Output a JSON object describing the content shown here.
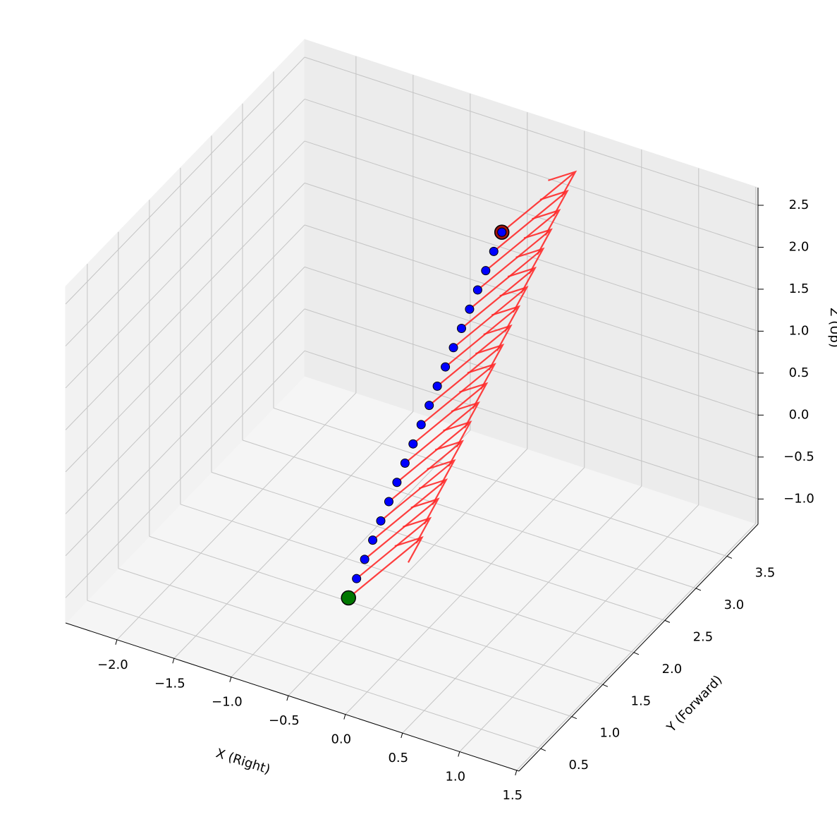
{
  "chart_data": {
    "type": "quiver3d",
    "xlabel": "X (Right)",
    "ylabel": "Y (Forward)",
    "zlabel": "Z (Up)",
    "xlim": [
      -2.45,
      1.52
    ],
    "ylim": [
      0.15,
      4.0
    ],
    "zlim": [
      -1.3,
      2.71
    ],
    "xticks": [
      {
        "value": -2.0,
        "label": "−2.0"
      },
      {
        "value": -1.5,
        "label": "−1.5"
      },
      {
        "value": -1.0,
        "label": "−1.0"
      },
      {
        "value": -0.5,
        "label": "−0.5"
      },
      {
        "value": 0.0,
        "label": "0.0"
      },
      0.5,
      {
        "value": 1.0,
        "label": "1.0"
      },
      1.5
    ],
    "yticks": [
      0.5,
      {
        "value": 1.0,
        "label": "1.0"
      },
      1.5,
      {
        "value": 2.0,
        "label": "2.0"
      },
      2.5,
      {
        "value": 3.0,
        "label": "3.0"
      },
      3.5
    ],
    "zticks": [
      {
        "value": -1.0,
        "label": "−1.0"
      },
      {
        "value": -0.5,
        "label": "−0.5"
      },
      {
        "value": 0.0,
        "label": "0.0"
      },
      0.5,
      {
        "value": 1.0,
        "label": "1.0"
      },
      1.5,
      {
        "value": 2.0,
        "label": "2.0"
      },
      2.5
    ],
    "grid": true,
    "points": {
      "color": "#0000ff",
      "x": [
        0,
        0,
        0,
        0,
        0,
        0,
        0,
        0,
        0,
        0,
        0,
        0,
        0,
        0,
        0,
        0,
        0,
        0,
        0,
        0
      ],
      "y": [
        0.2,
        0.33,
        0.46,
        0.59,
        0.72,
        0.85,
        0.98,
        1.11,
        1.24,
        1.37,
        1.5,
        1.63,
        1.76,
        1.89,
        2.02,
        2.15,
        2.28,
        2.41,
        2.54,
        2.67
      ],
      "z": [
        0.05,
        0.18,
        0.31,
        0.44,
        0.57,
        0.7,
        0.83,
        0.96,
        1.09,
        1.22,
        1.35,
        1.48,
        1.61,
        1.74,
        1.87,
        2.0,
        2.13,
        2.26,
        2.39,
        2.52
      ]
    },
    "arrows": {
      "color": "#ff2a2a",
      "u": [
        0.1,
        0.1,
        0.1,
        0.1,
        0.1,
        0.1,
        0.1,
        0.1,
        0.1,
        0.1,
        0.1,
        0.1,
        0.1,
        0.1,
        0.1,
        0.1,
        0.1,
        0.1,
        0.1,
        0.1
      ],
      "v": [
        1,
        1,
        1,
        1,
        1,
        1,
        1,
        1,
        1,
        1,
        1,
        1,
        1,
        1,
        1,
        1,
        1,
        1,
        1,
        1
      ],
      "w": [
        0,
        0,
        0,
        0,
        0,
        0,
        0,
        0,
        0,
        0,
        0,
        0,
        0,
        0,
        0,
        0,
        0,
        0,
        0,
        0
      ]
    },
    "start_color": "#007700",
    "end_color": "#a01010"
  }
}
